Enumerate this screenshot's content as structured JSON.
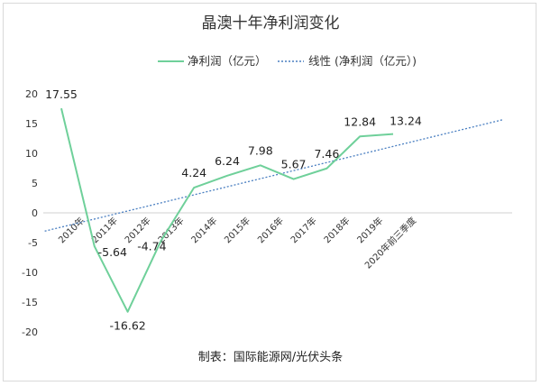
{
  "chart_data": {
    "type": "line",
    "title": "晶澳十年净利润变化",
    "categories": [
      "2010年",
      "2011年",
      "2012年",
      "2013年",
      "2014年",
      "2015年",
      "2016年",
      "2017年",
      "2018年",
      "2019年",
      "2020年前三季度"
    ],
    "series": [
      {
        "name": "净利润（亿元）",
        "values": [
          17.55,
          -5.64,
          -16.62,
          -4.74,
          4.24,
          6.24,
          7.98,
          5.67,
          7.46,
          12.84,
          13.24
        ],
        "data_labels": [
          "17.55",
          "-5.64",
          "-16.62",
          "-4.74",
          "4.24",
          "6.24",
          "7.98",
          "5.67",
          "7.46",
          "12.84",
          "13.24"
        ],
        "color": "#6fd09a"
      }
    ],
    "trendline": {
      "name": "线性 (净利润（亿元）)",
      "type": "linear",
      "color": "#4a7fc1"
    },
    "ylim": [
      -20,
      20
    ],
    "yticks": [
      20,
      15,
      10,
      5,
      0,
      -5,
      -10,
      -15,
      -20
    ],
    "ytick_labels": [
      "20",
      "15",
      "10",
      "5",
      "0",
      "-5",
      "-10",
      "-15",
      "-20"
    ],
    "grid": false,
    "legend_position": "top"
  },
  "source": "制表：国际能源网/光伏头条"
}
